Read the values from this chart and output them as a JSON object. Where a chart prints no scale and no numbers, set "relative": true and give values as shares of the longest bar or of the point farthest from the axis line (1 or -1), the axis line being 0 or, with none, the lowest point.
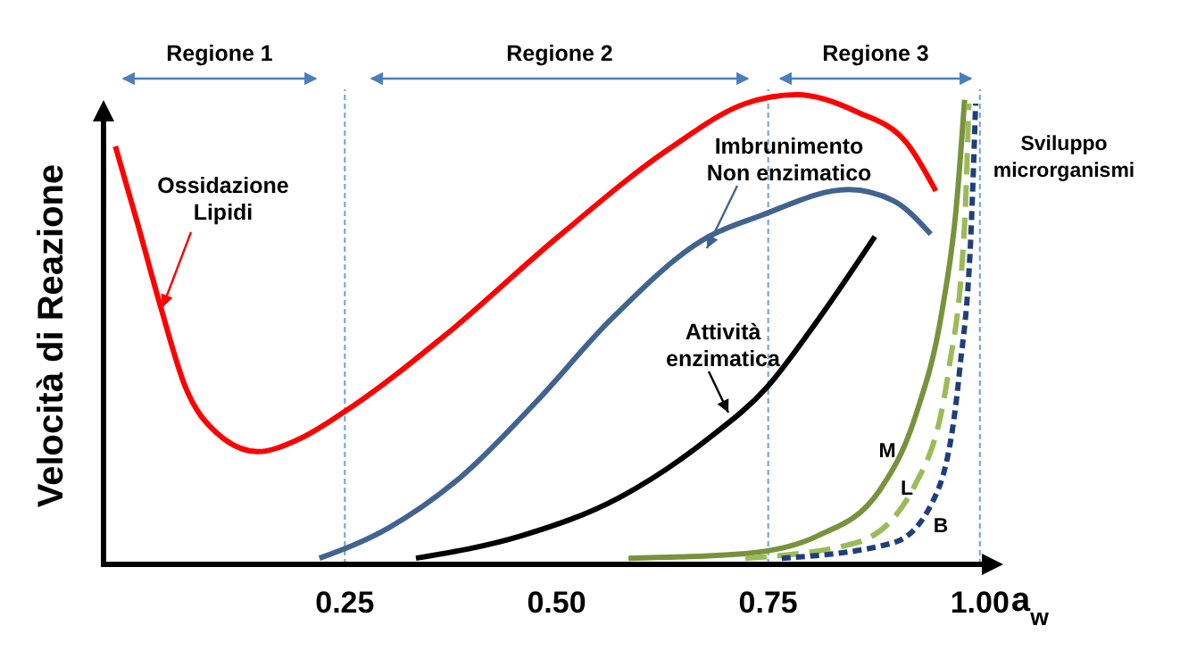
{
  "chart_data": {
    "type": "line",
    "relative": true,
    "ylabel": "Velocità di Reazione",
    "xlabel": "a$_{w}$",
    "xlim": [
      -0.035,
      1.015
    ],
    "xticks": [
      0.25,
      {
        "value": 0.5,
        "label": "0.50"
      },
      0.75,
      {
        "value": 1,
        "label": "1.00"
      }
    ],
    "marker": "none",
    "series": [
      {
        "name": "Ossidazione\nLipidi",
        "color": "#ff0000",
        "line_style": "solid",
        "x": [
          -0.021,
          0.005,
          0.032,
          0.062,
          0.098,
          0.147,
          0.195,
          0.248,
          0.37,
          0.501,
          0.634,
          0.723,
          0.784,
          0.854,
          0.915,
          0.948
        ],
        "values": [
          0.89,
          0.727,
          0.551,
          0.376,
          0.281,
          0.24,
          0.266,
          0.323,
          0.49,
          0.696,
          0.886,
          0.981,
          1.0,
          0.964,
          0.894,
          0.795
        ]
      },
      {
        "name": "Imbrunimento\nNon enzimatico",
        "color": "#41648f",
        "line_style": "solid",
        "x": [
          0.22,
          0.3,
          0.387,
          0.476,
          0.564,
          0.678,
          0.739,
          0.845,
          0.898,
          0.942
        ],
        "values": [
          0.013,
          0.076,
          0.186,
          0.346,
          0.521,
          0.696,
          0.741,
          0.798,
          0.774,
          0.703
        ]
      },
      {
        "name": "Attività\nenzimatica",
        "color": "#000000",
        "line_style": "solid",
        "x": [
          0.334,
          0.459,
          0.573,
          0.678,
          0.748,
          0.809,
          0.876
        ],
        "values": [
          0.013,
          0.061,
          0.141,
          0.266,
          0.376,
          0.521,
          0.698
        ]
      },
      {
        "name": "M",
        "color": "#77933c",
        "line_style": "solid",
        "x": [
          0.585,
          0.723,
          0.809,
          0.881,
          0.924,
          0.955,
          0.972,
          0.982
        ],
        "values": [
          0.013,
          0.023,
          0.061,
          0.156,
          0.316,
          0.536,
          0.757,
          0.989
        ]
      },
      {
        "name": "L",
        "color": "#9bbb59",
        "line_style": "dashed",
        "x": [
          0.723,
          0.854,
          0.924,
          0.963,
          0.982,
          0.987
        ],
        "values": [
          0.013,
          0.046,
          0.171,
          0.411,
          0.726,
          0.981
        ]
      },
      {
        "name": "B",
        "color": "#1f3f7a",
        "line_style": "dotted",
        "x": [
          0.766,
          0.898,
          0.95,
          0.976,
          0.99,
          0.995
        ],
        "values": [
          0.013,
          0.046,
          0.156,
          0.411,
          0.726,
          0.981
        ]
      }
    ],
    "ref_lines": [
      {
        "axis": "x",
        "value": 0.25,
        "color": "#6f9fd8",
        "line_style": "dashed"
      },
      {
        "axis": "x",
        "value": 0.75,
        "color": "#6f9fd8",
        "line_style": "dashed"
      },
      {
        "axis": "x",
        "value": 1.0,
        "color": "#6f9fd8",
        "line_style": "dashed"
      }
    ],
    "annotations": [
      "Regione 1",
      "Regione 2",
      "Regione 3",
      "Sviluppo\nmicrorganismi"
    ]
  }
}
